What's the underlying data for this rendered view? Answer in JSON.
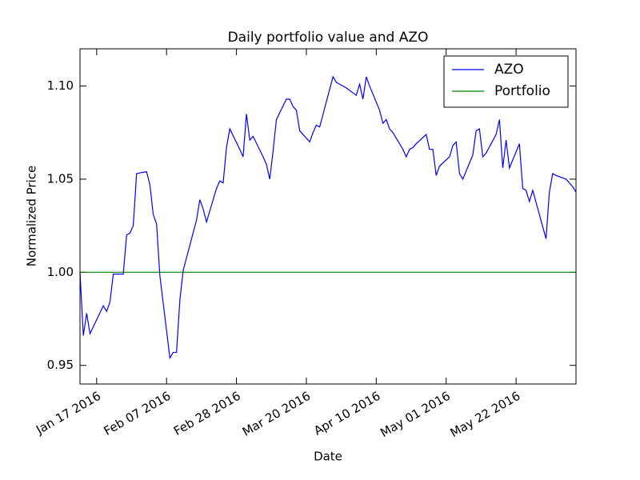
{
  "chart_data": {
    "type": "line",
    "title": "Daily portfolio value and AZO",
    "x_label": "Date",
    "y_label": "Normalized Price",
    "x": [
      "2016-01-12",
      "2016-01-13",
      "2016-01-14",
      "2016-01-15",
      "2016-01-19",
      "2016-01-20",
      "2016-01-21",
      "2016-01-22",
      "2016-01-25",
      "2016-01-26",
      "2016-01-27",
      "2016-01-28",
      "2016-01-29",
      "2016-02-01",
      "2016-02-02",
      "2016-02-03",
      "2016-02-04",
      "2016-02-05",
      "2016-02-08",
      "2016-02-09",
      "2016-02-10",
      "2016-02-11",
      "2016-02-12",
      "2016-02-16",
      "2016-02-17",
      "2016-02-18",
      "2016-02-19",
      "2016-02-22",
      "2016-02-23",
      "2016-02-24",
      "2016-02-25",
      "2016-02-26",
      "2016-02-29",
      "2016-03-01",
      "2016-03-02",
      "2016-03-03",
      "2016-03-04",
      "2016-03-07",
      "2016-03-08",
      "2016-03-09",
      "2016-03-10",
      "2016-03-11",
      "2016-03-14",
      "2016-03-15",
      "2016-03-16",
      "2016-03-17",
      "2016-03-18",
      "2016-03-21",
      "2016-03-22",
      "2016-03-23",
      "2016-03-24",
      "2016-03-28",
      "2016-03-29",
      "2016-03-30",
      "2016-03-31",
      "2016-04-01",
      "2016-04-04",
      "2016-04-05",
      "2016-04-06",
      "2016-04-07",
      "2016-04-08",
      "2016-04-11",
      "2016-04-12",
      "2016-04-13",
      "2016-04-14",
      "2016-04-15",
      "2016-04-18",
      "2016-04-19",
      "2016-04-20",
      "2016-04-21",
      "2016-04-22",
      "2016-04-25",
      "2016-04-26",
      "2016-04-27",
      "2016-04-28",
      "2016-04-29",
      "2016-05-02",
      "2016-05-03",
      "2016-05-04",
      "2016-05-05",
      "2016-05-06",
      "2016-05-09",
      "2016-05-10",
      "2016-05-11",
      "2016-05-12",
      "2016-05-13",
      "2016-05-16",
      "2016-05-17",
      "2016-05-18",
      "2016-05-19",
      "2016-05-20",
      "2016-05-23",
      "2016-05-24",
      "2016-05-25",
      "2016-05-26",
      "2016-05-27",
      "2016-05-31",
      "2016-06-01",
      "2016-06-02",
      "2016-06-03",
      "2016-06-06",
      "2016-06-07",
      "2016-06-08",
      "2016-06-09"
    ],
    "series": [
      {
        "name": "AZO",
        "color": "#0000ff",
        "values": [
          1.0,
          0.966,
          0.978,
          0.967,
          0.982,
          0.979,
          0.984,
          0.999,
          0.999,
          1.02,
          1.021,
          1.025,
          1.053,
          1.054,
          1.047,
          1.031,
          1.026,
          0.998,
          0.954,
          0.957,
          0.957,
          0.985,
          1.001,
          1.028,
          1.039,
          1.034,
          1.027,
          1.045,
          1.049,
          1.048,
          1.067,
          1.077,
          1.066,
          1.062,
          1.085,
          1.071,
          1.073,
          1.062,
          1.058,
          1.05,
          1.065,
          1.082,
          1.093,
          1.093,
          1.089,
          1.087,
          1.076,
          1.07,
          1.075,
          1.079,
          1.078,
          1.105,
          1.102,
          1.101,
          1.1,
          1.099,
          1.095,
          1.101,
          1.093,
          1.105,
          1.1,
          1.087,
          1.08,
          1.082,
          1.077,
          1.075,
          1.066,
          1.062,
          1.066,
          1.067,
          1.069,
          1.074,
          1.066,
          1.066,
          1.052,
          1.057,
          1.062,
          1.068,
          1.07,
          1.053,
          1.05,
          1.063,
          1.076,
          1.077,
          1.062,
          1.064,
          1.074,
          1.082,
          1.056,
          1.071,
          1.056,
          1.069,
          1.045,
          1.044,
          1.038,
          1.044,
          1.018,
          1.043,
          1.053,
          1.052,
          1.05,
          1.048,
          1.046,
          1.043
        ]
      },
      {
        "name": "Portfolio",
        "color": "#008000",
        "values": [
          1,
          1,
          1,
          1,
          1,
          1,
          1,
          1,
          1,
          1,
          1,
          1,
          1,
          1,
          1,
          1,
          1,
          1,
          1,
          1,
          1,
          1,
          1,
          1,
          1,
          1,
          1,
          1,
          1,
          1,
          1,
          1,
          1,
          1,
          1,
          1,
          1,
          1,
          1,
          1,
          1,
          1,
          1,
          1,
          1,
          1,
          1,
          1,
          1,
          1,
          1,
          1,
          1,
          1,
          1,
          1,
          1,
          1,
          1,
          1,
          1,
          1,
          1,
          1,
          1,
          1,
          1,
          1,
          1,
          1,
          1,
          1,
          1,
          1,
          1,
          1,
          1,
          1,
          1,
          1,
          1,
          1,
          1,
          1,
          1,
          1,
          1,
          1,
          1,
          1,
          1,
          1,
          1,
          1,
          1,
          1,
          1,
          1,
          1,
          1,
          1,
          1,
          1,
          1
        ]
      }
    ],
    "xlim": [
      "2016-01-12",
      "2016-06-09"
    ],
    "xticks": [
      {
        "value": "2016-01-17",
        "label": "Jan 17 2016"
      },
      {
        "value": "2016-02-07",
        "label": "Feb 07 2016"
      },
      {
        "value": "2016-02-28",
        "label": "Feb 28 2016"
      },
      {
        "value": "2016-03-20",
        "label": "Mar 20 2016"
      },
      {
        "value": "2016-04-10",
        "label": "Apr 10 2016"
      },
      {
        "value": "2016-05-01",
        "label": "May 01 2016"
      },
      {
        "value": "2016-05-22",
        "label": "May 22 2016"
      }
    ],
    "ylim": [
      0.94,
      1.12
    ],
    "yticks": [
      {
        "value": 0.95,
        "label": "0.95"
      },
      {
        "value": 1,
        "label": "1.00"
      },
      {
        "value": 1.05,
        "label": "1.05"
      },
      {
        "value": 1.1,
        "label": "1.10"
      }
    ],
    "legend": "upper right"
  }
}
